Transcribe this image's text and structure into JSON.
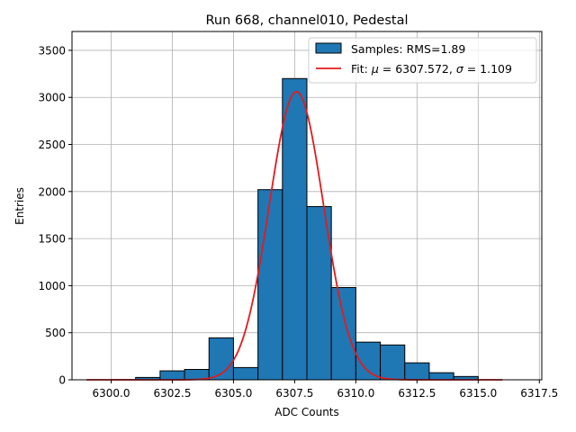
{
  "chart_data": {
    "type": "bar",
    "title": "Run 668, channel010, Pedestal",
    "xlabel": "ADC Counts",
    "ylabel": "Entries",
    "xlim": [
      6298.4,
      6317.6
    ],
    "ylim": [
      0,
      3700
    ],
    "grid": true,
    "legend_position": "top-right",
    "x_ticks": [
      6300.0,
      6302.5,
      6305.0,
      6307.5,
      6310.0,
      6312.5,
      6315.0,
      6317.5
    ],
    "x_tick_labels": [
      "6300.0",
      "6302.5",
      "6305.0",
      "6307.5",
      "6310.0",
      "6312.5",
      "6315.0",
      "6317.5"
    ],
    "y_ticks": [
      0,
      500,
      1000,
      1500,
      2000,
      2500,
      3000,
      3500
    ],
    "y_tick_labels": [
      "0",
      "500",
      "1000",
      "1500",
      "2000",
      "2500",
      "3000",
      "3500"
    ],
    "histogram": {
      "name": "Samples: RMS=1.89",
      "color": "#1f77b4",
      "edgecolor": "#000000",
      "bin_edges": [
        6300,
        6301,
        6302,
        6303,
        6304,
        6305,
        6306,
        6307,
        6308,
        6309,
        6310,
        6311,
        6312,
        6313,
        6314,
        6315
      ],
      "counts": [
        2,
        25,
        95,
        110,
        445,
        130,
        2020,
        3200,
        1840,
        980,
        400,
        370,
        180,
        75,
        35
      ]
    },
    "fit": {
      "name_prefix": "Fit: ",
      "name_mu": "μ",
      "name_mid": " = 6307.572, ",
      "name_sigma": "σ",
      "name_suffix": " = 1.109",
      "color": "#e41a1c",
      "mu": 6307.572,
      "sigma": 1.109,
      "amplitude": 3060,
      "x_range": [
        6299,
        6316
      ]
    }
  }
}
